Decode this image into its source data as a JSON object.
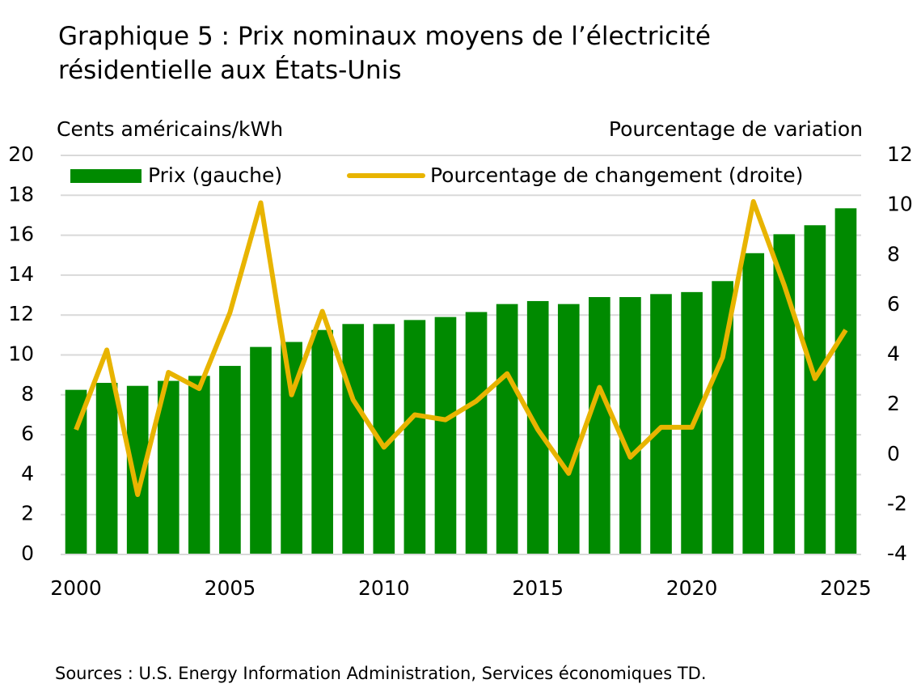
{
  "chart_data": {
    "type": "bar-line",
    "title": "Graphique 5 : Prix nominaux moyens de l’électricité résidentielle aux États-Unis",
    "y_label": "Cents américains/kWh",
    "y2_label": "Pourcentage de variation",
    "source": "Sources : U.S. Energy Information Administration, Services économiques TD.",
    "x": [
      2000,
      2001,
      2002,
      2003,
      2004,
      2005,
      2006,
      2007,
      2008,
      2009,
      2010,
      2011,
      2012,
      2013,
      2014,
      2015,
      2016,
      2017,
      2018,
      2019,
      2020,
      2021,
      2022,
      2023,
      2024,
      2025
    ],
    "xlim": [
      1999.5,
      2025.5
    ],
    "xticks": [
      2000,
      2005,
      2010,
      2015,
      2020,
      2025
    ],
    "ylim": [
      0,
      20
    ],
    "yticks": [
      0,
      2,
      4,
      6,
      8,
      10,
      12,
      14,
      16,
      18,
      20
    ],
    "y2lim": [
      -4,
      12
    ],
    "y2ticks": [
      -4,
      -2,
      0,
      2,
      4,
      6,
      8,
      10,
      12
    ],
    "grid": true,
    "series": [
      {
        "name": "Prix (gauche)",
        "type": "bar",
        "color": "#008a00",
        "values": [
          8.25,
          8.6,
          8.45,
          8.7,
          8.95,
          9.45,
          10.4,
          10.65,
          11.25,
          11.55,
          11.55,
          11.75,
          11.9,
          12.15,
          12.55,
          12.7,
          12.55,
          12.9,
          12.9,
          13.05,
          13.15,
          13.7,
          15.1,
          16.05,
          16.5,
          17.35
        ]
      },
      {
        "name": "Pourcentage de changement (droite)",
        "type": "line",
        "axis": "y2",
        "color": "#e8b400",
        "values": [
          1.0,
          4.2,
          -1.6,
          3.3,
          2.65,
          5.7,
          10.1,
          2.4,
          5.75,
          2.2,
          0.3,
          1.6,
          1.4,
          2.15,
          3.25,
          1.0,
          -0.75,
          2.7,
          -0.1,
          1.1,
          1.1,
          3.9,
          10.15,
          6.8,
          3.05,
          5.0
        ]
      }
    ]
  }
}
